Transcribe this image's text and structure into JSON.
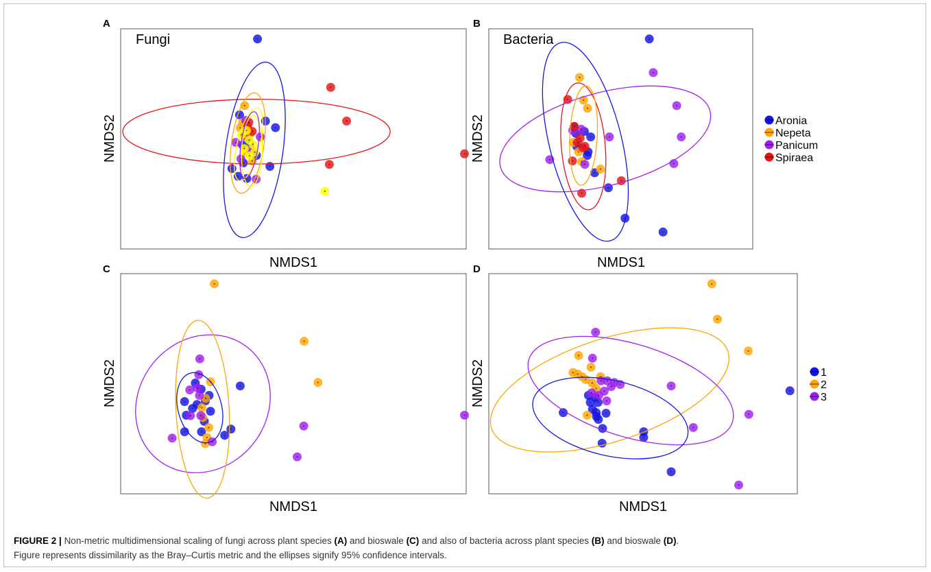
{
  "caption": {
    "label": "FIGURE 2 |",
    "line1": [
      {
        "t": "Non-metric multidimensional scaling of fungi across plant species ",
        "b": false
      },
      {
        "t": "(A)",
        "b": true
      },
      {
        "t": " and bioswale ",
        "b": false
      },
      {
        "t": "(C)",
        "b": true
      },
      {
        "t": " and also of bacteria across plant species ",
        "b": false
      },
      {
        "t": "(B)",
        "b": true
      },
      {
        "t": " and bioswale ",
        "b": false
      },
      {
        "t": "(D)",
        "b": true
      },
      {
        "t": ".",
        "b": false
      }
    ],
    "line2": "Figure represents dissimilarity as the Bray–Curtis metric and the ellipses signify 95% confidence intervals."
  },
  "legends": {
    "plant": {
      "items": [
        {
          "name": "Aronia",
          "color": "#1414e6"
        },
        {
          "name": "Nepeta",
          "color": "#ffa500"
        },
        {
          "name": "Panicum",
          "color": "#a020f0"
        },
        {
          "name": "Spiraea",
          "color": "#e61414"
        }
      ]
    },
    "bioswale": {
      "items": [
        {
          "name": "1",
          "color": "#1414e6"
        },
        {
          "name": "2",
          "color": "#ffa500"
        },
        {
          "name": "3",
          "color": "#a020f0"
        }
      ]
    }
  },
  "chart_data": [
    {
      "type": "scatter",
      "panel": "A",
      "label": "Fungi",
      "xlabel": "NMDS1",
      "ylabel": "NMDS2",
      "xlim": [
        0,
        100
      ],
      "ylim": [
        0,
        100
      ],
      "legend": "plant",
      "grid": false,
      "series": [
        {
          "name": "Aronia",
          "color": "#1414e6",
          "points": [
            [
              39.6,
              95.4
            ],
            [
              44.8,
              55.1
            ],
            [
              32.2,
              36.5
            ],
            [
              34,
              33
            ],
            [
              36.5,
              32
            ],
            [
              43.2,
              37.5
            ],
            [
              35.3,
              47.2
            ],
            [
              37.3,
              48.4
            ],
            [
              34.4,
              60.9
            ],
            [
              35.5,
              39.1
            ],
            [
              41.9,
              58.1
            ],
            [
              39.3,
              42.5
            ]
          ]
        },
        {
          "name": "Nepeta",
          "color": "#ffa500",
          "points": [
            [
              35.9,
              65.1
            ],
            [
              35.3,
              57.5
            ],
            [
              37.5,
              52.5
            ],
            [
              36.5,
              44.1
            ],
            [
              38.1,
              40
            ],
            [
              34.6,
              55
            ]
          ]
        },
        {
          "name": "Panicum",
          "color": "#a020f0",
          "points": [
            [
              33.3,
              48.4
            ],
            [
              40.4,
              50.9
            ],
            [
              39.2,
              31.7
            ],
            [
              36.2,
              58.4
            ],
            [
              37.8,
              45
            ],
            [
              34.8,
              40.9
            ]
          ]
        },
        {
          "name": "Spiraea",
          "color": "#e61414",
          "points": [
            [
              60.8,
              73.4
            ],
            [
              65.4,
              58.1
            ],
            [
              60.4,
              38.4
            ],
            [
              99.5,
              43.2
            ],
            [
              36.7,
              55.7
            ],
            [
              38.1,
              53.4
            ],
            [
              35.8,
              51.3
            ],
            [
              37.1,
              57.5
            ]
          ]
        },
        {
          "name": "",
          "color": "#ffff00",
          "points": [
            [
              59.1,
              26.2
            ],
            [
              37.2,
              49.4
            ],
            [
              35.8,
              45.6
            ],
            [
              38.3,
              47.5
            ],
            [
              37.3,
              42.3
            ],
            [
              36.4,
              53.8
            ],
            [
              35,
              51.9
            ],
            [
              38.8,
              44
            ]
          ]
        }
      ],
      "ellipses": [
        {
          "color": "#e61414",
          "cx": 39.3,
          "cy": 53.3,
          "rx": 38.7,
          "ry": 14.7,
          "rot": 0
        },
        {
          "color": "#1414e6",
          "cx": 38.7,
          "cy": 45,
          "rx": 8.3,
          "ry": 40.2,
          "rot": 8
        },
        {
          "color": "#ffa500",
          "cx": 36.8,
          "cy": 48.1,
          "rx": 4.7,
          "ry": 23,
          "rot": 8
        },
        {
          "color": "#ffff00",
          "cx": 37,
          "cy": 47.5,
          "rx": 3.3,
          "ry": 17,
          "rot": 14
        },
        {
          "color": "#ffff00",
          "cx": 38,
          "cy": 44.4,
          "rx": 3,
          "ry": 16.1,
          "rot": 2
        },
        {
          "color": "#a020f0",
          "cx": 37.3,
          "cy": 47.2,
          "rx": 2.5,
          "ry": 15.3,
          "rot": 8
        }
      ]
    },
    {
      "type": "scatter",
      "panel": "B",
      "label": "Bacteria",
      "xlabel": "NMDS1",
      "ylabel": "NMDS2",
      "xlim": [
        0,
        100
      ],
      "ylim": [
        0,
        100
      ],
      "legend": "plant",
      "grid": false,
      "series": [
        {
          "name": "Aronia",
          "color": "#1414e6",
          "points": [
            [
              60.8,
              95.4
            ],
            [
              40.1,
              34.6
            ],
            [
              45.3,
              27.8
            ],
            [
              51.6,
              14
            ],
            [
              66,
              7.7
            ],
            [
              32.3,
              55.5
            ],
            [
              33,
              52.5
            ],
            [
              36.2,
              53.4
            ],
            [
              33.3,
              46.6
            ],
            [
              37.3,
              42.5
            ],
            [
              37.6,
              44.1
            ],
            [
              38.6,
              50.9
            ]
          ]
        },
        {
          "name": "Nepeta",
          "color": "#ffa500",
          "points": [
            [
              34.4,
              77.9
            ],
            [
              37.4,
              63.9
            ],
            [
              35.9,
              67.6
            ],
            [
              42.3,
              36.3
            ],
            [
              32,
              48.4
            ],
            [
              34,
              44.1
            ],
            [
              35.2,
              39.7
            ]
          ]
        },
        {
          "name": "Panicum",
          "color": "#a020f0",
          "points": [
            [
              62.3,
              80.1
            ],
            [
              71.2,
              65.1
            ],
            [
              72.9,
              50.9
            ],
            [
              70.1,
              38.8
            ],
            [
              23.1,
              40.6
            ],
            [
              36.4,
              38.4
            ],
            [
              45.7,
              50.9
            ],
            [
              35,
              54.4
            ],
            [
              31.8,
              53.8
            ]
          ]
        },
        {
          "name": "Spiraea",
          "color": "#e61414",
          "points": [
            [
              29.9,
              67.9
            ],
            [
              50.2,
              31
            ],
            [
              35.2,
              25.3
            ],
            [
              31.7,
              40
            ],
            [
              32.4,
              55.7
            ],
            [
              35.7,
              45.9
            ],
            [
              33.6,
              48.4
            ],
            [
              36.4,
              46.6
            ],
            [
              34.6,
              50.3
            ]
          ]
        }
      ],
      "ellipses": [
        {
          "color": "#a020f0",
          "cx": 44.1,
          "cy": 50,
          "rx": 41.1,
          "ry": 21.1,
          "rot": -15
        },
        {
          "color": "#1414e6",
          "cx": 36.6,
          "cy": 48.7,
          "rx": 13.7,
          "ry": 46.4,
          "rot": -14
        },
        {
          "color": "#e61414",
          "cx": 35.8,
          "cy": 46.6,
          "rx": 8.3,
          "ry": 28.9,
          "rot": -5
        },
        {
          "color": "#ffa500",
          "cx": 35.9,
          "cy": 51.5,
          "rx": 5.2,
          "ry": 22.6,
          "rot": 3
        }
      ]
    },
    {
      "type": "scatter",
      "panel": "C",
      "xlabel": "NMDS1",
      "ylabel": "NMDS2",
      "xlim": [
        0,
        100
      ],
      "ylim": [
        0,
        100
      ],
      "legend": "bioswale",
      "grid": false,
      "series": [
        {
          "name": "1",
          "color": "#1414e6",
          "points": [
            [
              34.6,
              49
            ],
            [
              31.9,
              29.4
            ],
            [
              18.5,
              28.2
            ],
            [
              23.4,
              28.2
            ],
            [
              30.1,
              26.6
            ],
            [
              19,
              35.7
            ],
            [
              20.8,
              38.8
            ],
            [
              22.1,
              40.6
            ],
            [
              24.5,
              42.2
            ],
            [
              23.3,
              47.5
            ],
            [
              21.6,
              50.3
            ],
            [
              26,
              37.5
            ],
            [
              25.6,
              44.7
            ],
            [
              18.5,
              41.9
            ],
            [
              24.2,
              32.9
            ]
          ]
        },
        {
          "name": "2",
          "color": "#ffa500",
          "points": [
            [
              27.1,
              95.4
            ],
            [
              53.1,
              69.3
            ],
            [
              57.1,
              50.6
            ],
            [
              24.6,
              43.4
            ],
            [
              23.5,
              39.1
            ],
            [
              26,
              50.9
            ],
            [
              23.8,
              34.7
            ],
            [
              25.5,
              30.1
            ],
            [
              24.5,
              22.8
            ],
            [
              25,
              25.6
            ]
          ]
        },
        {
          "name": "3",
          "color": "#a020f0",
          "points": [
            [
              99.5,
              35.7
            ],
            [
              53,
              30.8
            ],
            [
              51.1,
              16.8
            ],
            [
              22.9,
              61.3
            ],
            [
              22.6,
              54.1
            ],
            [
              20.2,
              35.5
            ],
            [
              23.2,
              35.5
            ],
            [
              20,
              47.2
            ],
            [
              22.2,
              48.1
            ],
            [
              26.5,
              23.6
            ],
            [
              14.9,
              25.3
            ],
            [
              22.8,
              44.7
            ]
          ]
        }
      ],
      "ellipses": [
        {
          "color": "#a020f0",
          "cx": 23.8,
          "cy": 40.9,
          "rx": 20.8,
          "ry": 29.2,
          "rot": -51
        },
        {
          "color": "#ffa500",
          "cx": 23.7,
          "cy": 38.4,
          "rx": 7.7,
          "ry": 40.4,
          "rot": -3
        },
        {
          "color": "#1414e6",
          "cx": 22.9,
          "cy": 39.1,
          "rx": 6.3,
          "ry": 16.3,
          "rot": -15
        }
      ]
    },
    {
      "type": "scatter",
      "panel": "D",
      "xlabel": "NMDS1",
      "ylabel": "NMDS2",
      "xlim": [
        0,
        100
      ],
      "ylim": [
        0,
        100
      ],
      "legend": "bioswale",
      "grid": false,
      "series": [
        {
          "name": "1",
          "color": "#1414e6",
          "points": [
            [
              59.1,
              10
            ],
            [
              50.2,
              28.2
            ],
            [
              50.2,
              25.6
            ],
            [
              36.7,
              23
            ],
            [
              97.6,
              46.8
            ],
            [
              24.1,
              36.9
            ],
            [
              34.9,
              35.1
            ],
            [
              38,
              36.6
            ],
            [
              35.5,
              33.8
            ],
            [
              32.3,
              44.7
            ],
            [
              32.9,
              41.5
            ],
            [
              33.6,
              38.4
            ],
            [
              34.5,
              43.8
            ],
            [
              35.4,
              41.5
            ],
            [
              34.8,
              36.9
            ],
            [
              36.9,
              29.7
            ]
          ]
        },
        {
          "name": "2",
          "color": "#ffa500",
          "points": [
            [
              72.3,
              95.4
            ],
            [
              74.1,
              79.3
            ],
            [
              84.1,
              64.9
            ],
            [
              29.1,
              62.8
            ],
            [
              27.3,
              55.1
            ],
            [
              28.8,
              54.4
            ],
            [
              31.4,
              51.9
            ],
            [
              33.1,
              57.5
            ],
            [
              33.5,
              50.3
            ],
            [
              30.2,
              53.2
            ],
            [
              31.9,
              35.7
            ],
            [
              36.2,
              53.2
            ],
            [
              34.8,
              47.8
            ]
          ]
        },
        {
          "name": "3",
          "color": "#a020f0",
          "points": [
            [
              81,
              4
            ],
            [
              84.3,
              36.1
            ],
            [
              66.3,
              30.1
            ],
            [
              59.1,
              49
            ],
            [
              34.6,
              73.4
            ],
            [
              33.6,
              61.6
            ],
            [
              36.4,
              51.3
            ],
            [
              38.4,
              51.3
            ],
            [
              40.7,
              50.6
            ],
            [
              42.6,
              49.7
            ],
            [
              37.4,
              46.6
            ],
            [
              33.3,
              45.9
            ],
            [
              38.2,
              42.2
            ],
            [
              39.7,
              48.7
            ],
            [
              35.6,
              44.7
            ]
          ]
        }
      ],
      "ellipses": [
        {
          "color": "#ffa500",
          "cx": 39.2,
          "cy": 47.2,
          "rx": 40.3,
          "ry": 23.3,
          "rot": -18
        },
        {
          "color": "#a020f0",
          "cx": 46,
          "cy": 46.9,
          "rx": 34.5,
          "ry": 21.1,
          "rot": 17
        },
        {
          "color": "#1414e6",
          "cx": 39.4,
          "cy": 34.4,
          "rx": 25.7,
          "ry": 17.1,
          "rot": 13
        }
      ]
    }
  ]
}
